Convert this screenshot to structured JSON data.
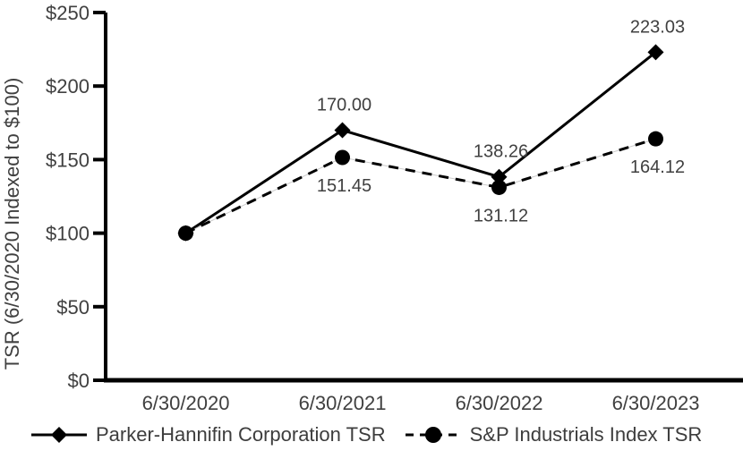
{
  "chart_data": {
    "type": "line",
    "title": "",
    "xlabel": "",
    "ylabel": "TSR (6/30/2020 Indexed to $100)",
    "x": [
      "6/30/2020",
      "6/30/2021",
      "6/30/2022",
      "6/30/2023"
    ],
    "ylim": [
      0,
      250
    ],
    "y_ticks": [
      "$0",
      "$50",
      "$100",
      "$150",
      "$200",
      "$250"
    ],
    "y_tick_values": [
      0,
      50,
      100,
      150,
      200,
      250
    ],
    "grid": false,
    "legend_position": "bottom",
    "series": [
      {
        "name": "Parker-Hannifin Corporation TSR",
        "marker": "diamond",
        "line_style": "solid",
        "color": "#000000",
        "values": [
          100,
          170.0,
          138.26,
          223.03
        ],
        "point_labels": [
          "",
          "170.00",
          "138.26",
          "223.03"
        ],
        "label_position": "above"
      },
      {
        "name": "S&P Industrials Index TSR",
        "marker": "circle",
        "line_style": "dashed",
        "color": "#000000",
        "values": [
          100,
          151.45,
          131.12,
          164.12
        ],
        "point_labels": [
          "",
          "151.45",
          "131.12",
          "164.12"
        ],
        "label_position": "below"
      }
    ]
  },
  "colors": {
    "axis": "#000000",
    "text": "#404040",
    "dash_underlay": "#c9c9c9",
    "background": "#ffffff"
  }
}
